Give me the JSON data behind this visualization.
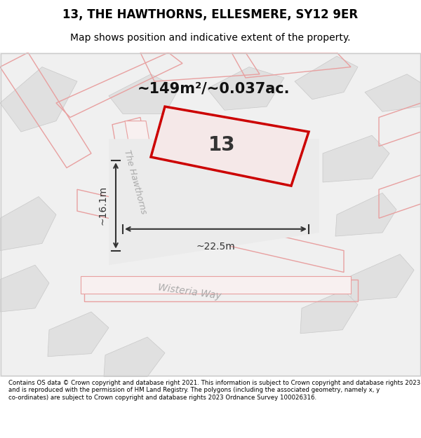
{
  "title": "13, THE HAWTHORNS, ELLESMERE, SY12 9ER",
  "subtitle": "Map shows position and indicative extent of the property.",
  "footer": "Contains OS data © Crown copyright and database right 2021. This information is subject to Crown copyright and database rights 2023 and is reproduced with the permission of HM Land Registry. The polygons (including the associated geometry, namely x, y co-ordinates) are subject to Crown copyright and database rights 2023 Ordnance Survey 100026316.",
  "area_label": "~149m²/~0.037ac.",
  "width_label": "~22.5m",
  "height_label": "~16.1m",
  "plot_number": "13",
  "bg_color": "#f5f5f5",
  "map_bg": "#ffffff",
  "road_color": "#e8e8e8",
  "plot_outline_color": "#e8a0a0",
  "plot_fill_color": "#e8e8e8",
  "highlight_color": "#cc0000",
  "road_label_color": "#aaaaaa",
  "street_name_1": "The Hawthorns",
  "street_name_2": "Wisteria Way",
  "figsize": [
    6.0,
    6.25
  ],
  "dpi": 100
}
